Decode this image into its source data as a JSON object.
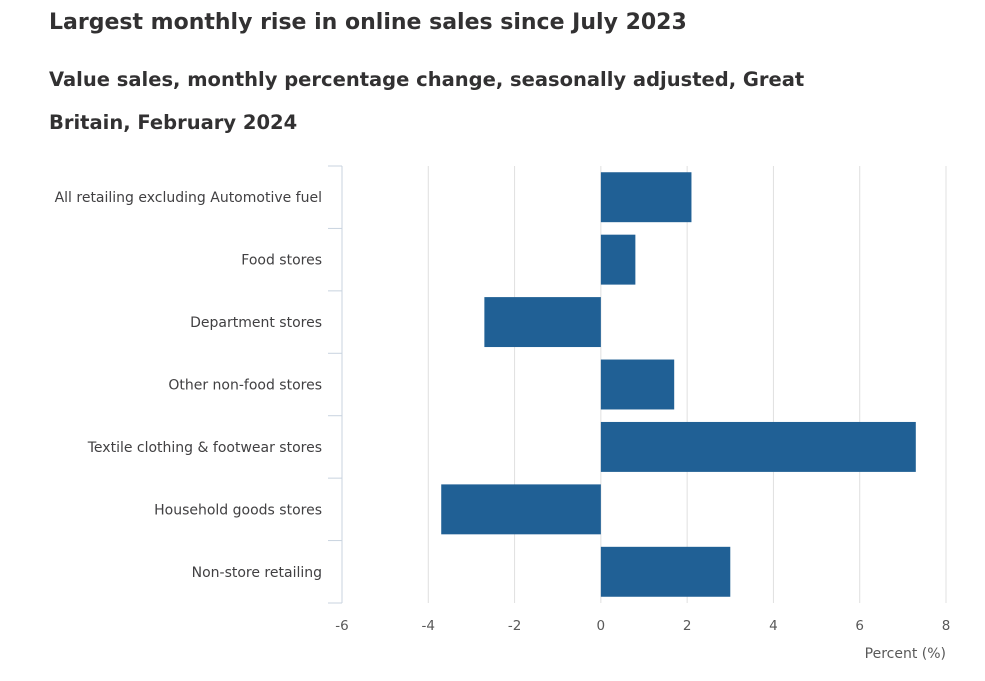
{
  "title": "Largest monthly rise in online sales since July 2023",
  "subtitle": "Value sales, monthly percentage change, seasonally adjusted, Great Britain, February 2024",
  "chart_data": {
    "type": "bar",
    "orientation": "horizontal",
    "categories": [
      "All retailing excluding Automotive fuel",
      "Food stores",
      "Department stores",
      "Other non-food stores",
      "Textile clothing & footwear stores",
      "Household goods stores",
      "Non-store retailing"
    ],
    "values": [
      2.1,
      0.8,
      -2.7,
      1.7,
      7.3,
      -3.7,
      3.0
    ],
    "xlabel": "Percent (%)",
    "ylabel": "",
    "xlim": [
      -6,
      8
    ],
    "xticks": [
      -6,
      -4,
      -2,
      0,
      2,
      4,
      6,
      8
    ],
    "xtick_labels": [
      "-6",
      "-4",
      "-2",
      "0",
      "2",
      "4",
      "6",
      "8"
    ],
    "grid": "vertical",
    "bar_color": "#206095",
    "grid_color": "#e0e0e0",
    "axis_color": "#c8d3df"
  }
}
